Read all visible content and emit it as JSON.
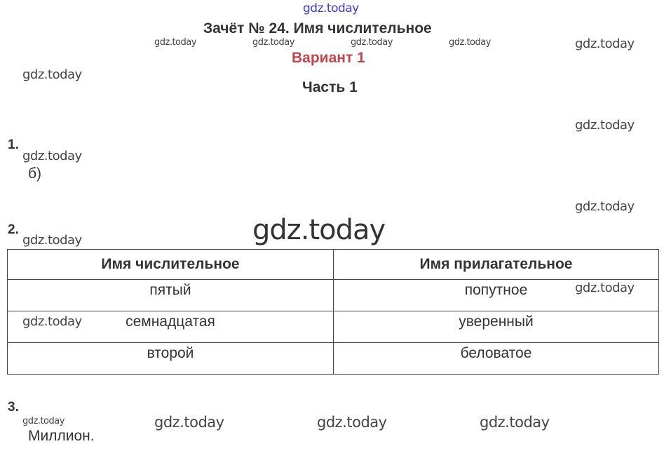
{
  "header": {
    "title": "Зачёт № 24. Имя числительное",
    "variant": "Вариант 1",
    "part": "Часть 1"
  },
  "tasks": [
    {
      "number": "1.",
      "answer": "б)"
    },
    {
      "number": "2."
    },
    {
      "number": "3.",
      "answer": "Миллион."
    }
  ],
  "table": {
    "headers": [
      "Имя числительное",
      "Имя прилагательное"
    ],
    "rows": [
      [
        "пятый",
        "попутное"
      ],
      [
        "семнадцатая",
        "уверенный"
      ],
      [
        "второй",
        "беловатое"
      ]
    ]
  },
  "watermark": "gdz.today"
}
